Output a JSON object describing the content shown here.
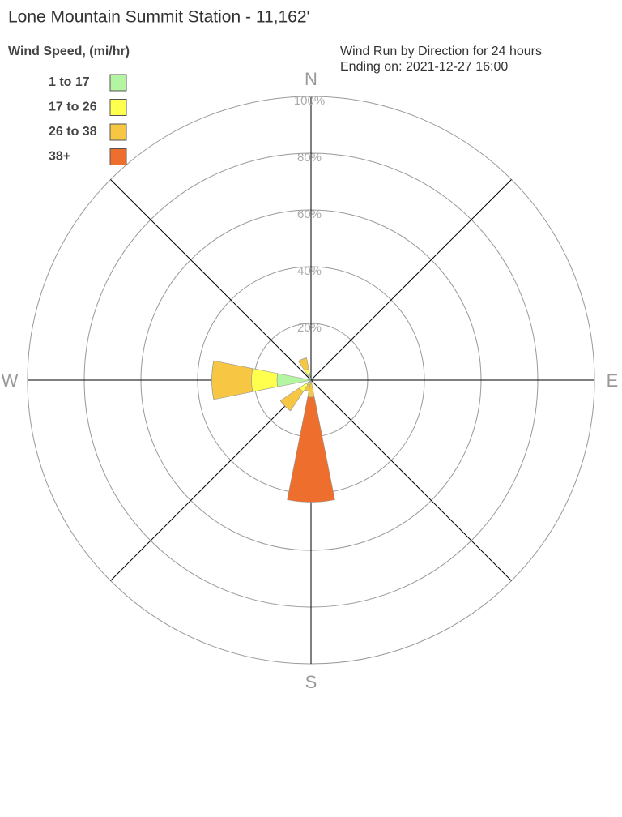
{
  "chart_data": {
    "type": "windrose",
    "title": "Lone Mountain Summit Station - 11,162'",
    "legend_title": "Wind Speed, (mi/hr)",
    "subtitle": [
      "Wind Run by Direction for 24 hours",
      "Ending on: 2021-12-27 16:00"
    ],
    "categories": [
      "N",
      null,
      null,
      null,
      "E",
      null,
      null,
      null,
      "S",
      null,
      null,
      null,
      "W",
      null,
      null,
      null
    ],
    "series": [
      {
        "name": "1 to 17",
        "color": "#b3f5a0",
        "values": [
          0,
          0,
          0,
          0,
          0,
          0,
          0,
          0,
          0,
          0,
          2,
          0,
          12,
          0,
          0,
          2
        ]
      },
      {
        "name": "17 to 26",
        "color": "#ffff4d",
        "values": [
          0,
          0,
          0,
          0,
          0,
          0,
          0,
          0,
          0,
          0,
          3,
          0,
          9,
          0,
          0,
          2
        ]
      },
      {
        "name": "26 to 38",
        "color": "#f7c744",
        "values": [
          0,
          0,
          0,
          0,
          0,
          0,
          0,
          0,
          6,
          4,
          8,
          0,
          14,
          0,
          0,
          4
        ]
      },
      {
        "name": "38+",
        "color": "#ee6e2e",
        "values": [
          0,
          0,
          0,
          0,
          0,
          0,
          0,
          0,
          37,
          0,
          0,
          0,
          0,
          0,
          0,
          0
        ]
      }
    ],
    "rlim": [
      0,
      100
    ],
    "rticks": [
      {
        "value": 20,
        "label": "20%"
      },
      {
        "value": 40,
        "label": "40%"
      },
      {
        "value": 60,
        "label": "60%"
      },
      {
        "value": 80,
        "label": "80%"
      },
      {
        "value": 100,
        "label": "100%"
      }
    ],
    "legend": "upper left"
  }
}
